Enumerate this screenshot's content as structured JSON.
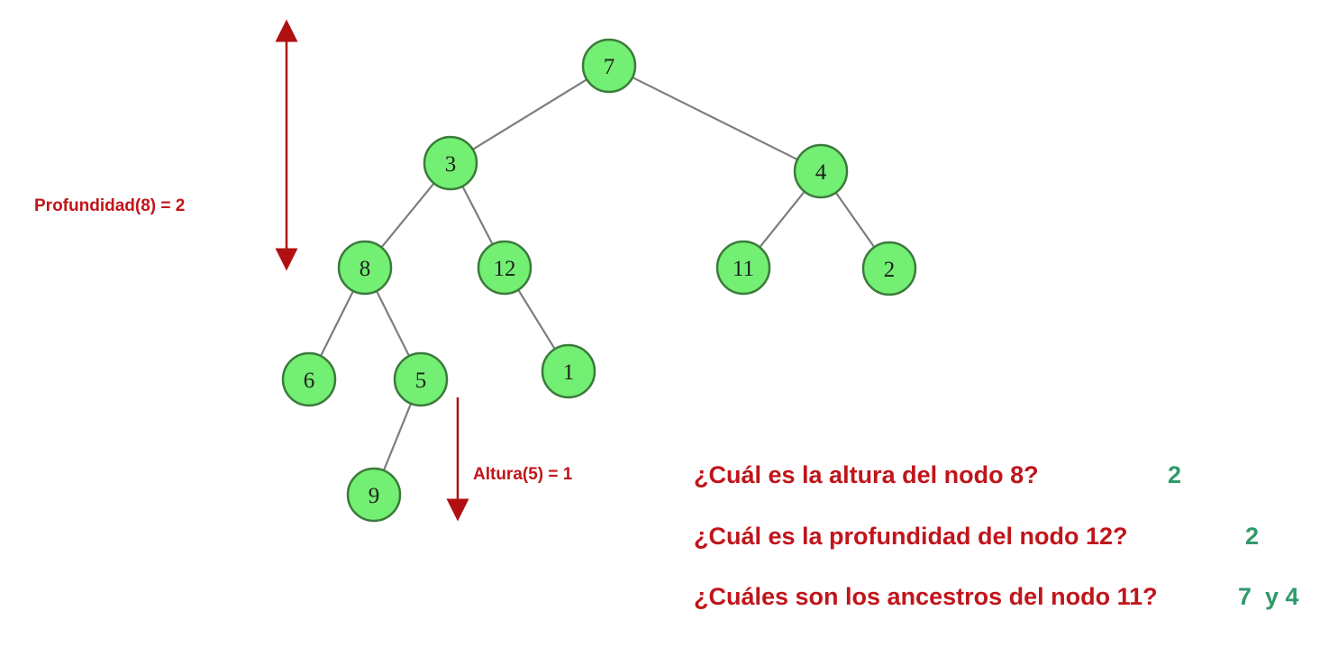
{
  "tree": {
    "nodes": [
      {
        "id": "n7",
        "label": "7"
      },
      {
        "id": "n3",
        "label": "3"
      },
      {
        "id": "n4",
        "label": "4"
      },
      {
        "id": "n8",
        "label": "8"
      },
      {
        "id": "n12",
        "label": "12"
      },
      {
        "id": "n11",
        "label": "11"
      },
      {
        "id": "n2",
        "label": "2"
      },
      {
        "id": "n6",
        "label": "6"
      },
      {
        "id": "n5",
        "label": "5"
      },
      {
        "id": "n1",
        "label": "1"
      },
      {
        "id": "n9",
        "label": "9"
      }
    ],
    "edges": [
      [
        "n7",
        "n3"
      ],
      [
        "n7",
        "n4"
      ],
      [
        "n3",
        "n8"
      ],
      [
        "n3",
        "n12"
      ],
      [
        "n4",
        "n11"
      ],
      [
        "n4",
        "n2"
      ],
      [
        "n8",
        "n6"
      ],
      [
        "n8",
        "n5"
      ],
      [
        "n12",
        "n1"
      ],
      [
        "n5",
        "n9"
      ]
    ]
  },
  "annotations": {
    "depth": "Profundidad(8) = 2",
    "height": "Altura(5) = 1"
  },
  "colors": {
    "node_fill": "#73ef73",
    "node_stroke": "#3b7a3b",
    "edge": "#7d7d7d",
    "question_red": "#c0151b",
    "answer_green": "#2f9a6a"
  },
  "questions": [
    {
      "question": "¿Cuál es la altura del nodo 8?",
      "answer": "2"
    },
    {
      "question": "¿Cuál es la profundidad del nodo 12?",
      "answer": "2"
    },
    {
      "question": "¿Cuáles son los ancestros del nodo 11?",
      "answer": "7  y 4"
    }
  ]
}
